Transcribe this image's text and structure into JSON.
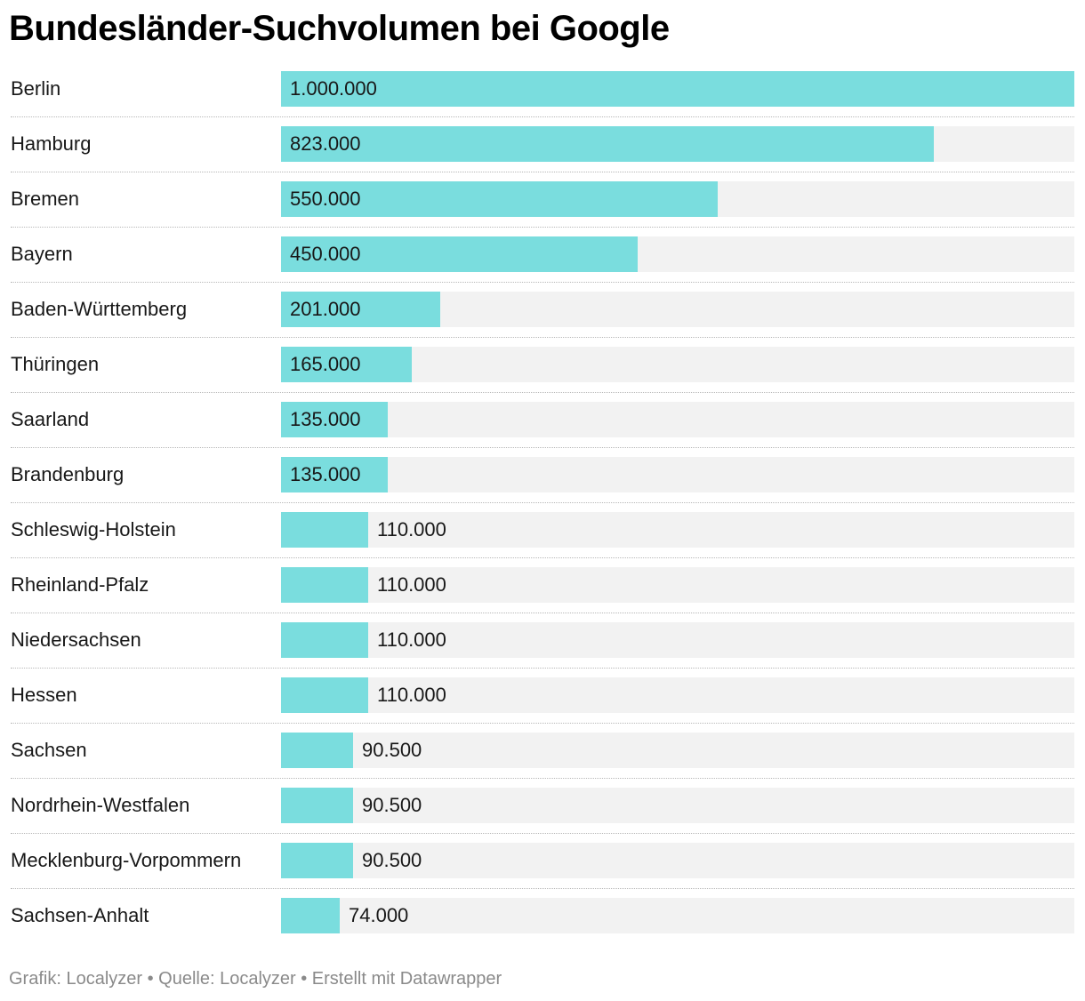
{
  "chart_data": {
    "type": "bar",
    "orientation": "horizontal",
    "title": "Bundesländer-Suchvolumen bei Google",
    "categories": [
      "Berlin",
      "Hamburg",
      "Bremen",
      "Bayern",
      "Baden-Württemberg",
      "Thüringen",
      "Saarland",
      "Brandenburg",
      "Schleswig-Holstein",
      "Rheinland-Pfalz",
      "Niedersachsen",
      "Hessen",
      "Sachsen",
      "Nordrhein-Westfalen",
      "Mecklenburg-Vorpommern",
      "Sachsen-Anhalt"
    ],
    "values": [
      1000000,
      823000,
      550000,
      450000,
      201000,
      165000,
      135000,
      135000,
      110000,
      110000,
      110000,
      110000,
      90500,
      90500,
      90500,
      74000
    ],
    "value_labels": [
      "1.000.000",
      "823.000",
      "550.000",
      "450.000",
      "201.000",
      "165.000",
      "135.000",
      "135.000",
      "110.000",
      "110.000",
      "110.000",
      "110.000",
      "90.500",
      "90.500",
      "90.500",
      "74.000"
    ],
    "xlim": [
      0,
      1000000
    ],
    "grid": false,
    "legend": "none",
    "colors": {
      "bar": "#7addde",
      "track": "#f2f2f2"
    }
  },
  "footer": "Grafik: Localyzer • Quelle: Localyzer • Erstellt mit Datawrapper"
}
